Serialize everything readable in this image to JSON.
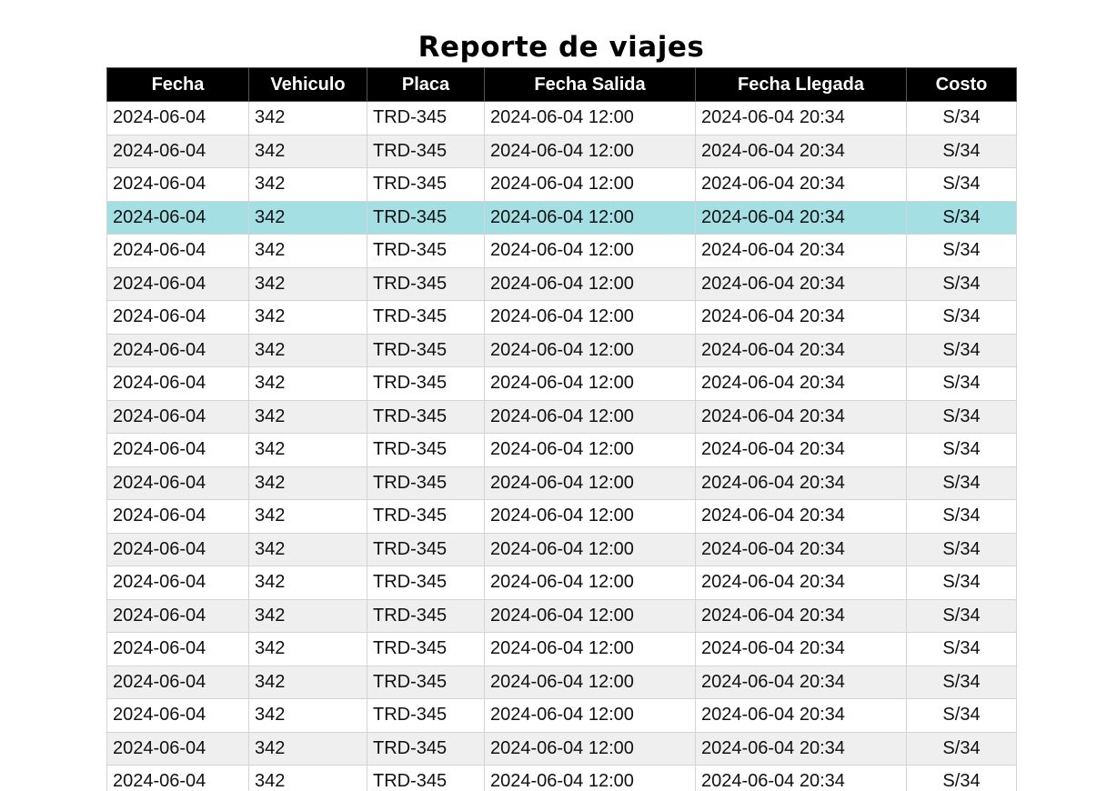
{
  "title": "Reporte de viajes",
  "colors": {
    "header_bg": "#000000",
    "header_text": "#ffffff",
    "row_alt": "#efefef",
    "row_selected": "#a3dfe3"
  },
  "table": {
    "columns": [
      "Fecha",
      "Vehiculo",
      "Placa",
      "Fecha Salida",
      "Fecha Llegada",
      "Costo"
    ],
    "selected_row": 3,
    "rows": [
      [
        "2024-06-04",
        "342",
        "TRD-345",
        "2024-06-04 12:00",
        "2024-06-04 20:34",
        "S/34"
      ],
      [
        "2024-06-04",
        "342",
        "TRD-345",
        "2024-06-04 12:00",
        "2024-06-04 20:34",
        "S/34"
      ],
      [
        "2024-06-04",
        "342",
        "TRD-345",
        "2024-06-04 12:00",
        "2024-06-04 20:34",
        "S/34"
      ],
      [
        "2024-06-04",
        "342",
        "TRD-345",
        "2024-06-04 12:00",
        "2024-06-04 20:34",
        "S/34"
      ],
      [
        "2024-06-04",
        "342",
        "TRD-345",
        "2024-06-04 12:00",
        "2024-06-04 20:34",
        "S/34"
      ],
      [
        "2024-06-04",
        "342",
        "TRD-345",
        "2024-06-04 12:00",
        "2024-06-04 20:34",
        "S/34"
      ],
      [
        "2024-06-04",
        "342",
        "TRD-345",
        "2024-06-04 12:00",
        "2024-06-04 20:34",
        "S/34"
      ],
      [
        "2024-06-04",
        "342",
        "TRD-345",
        "2024-06-04 12:00",
        "2024-06-04 20:34",
        "S/34"
      ],
      [
        "2024-06-04",
        "342",
        "TRD-345",
        "2024-06-04 12:00",
        "2024-06-04 20:34",
        "S/34"
      ],
      [
        "2024-06-04",
        "342",
        "TRD-345",
        "2024-06-04 12:00",
        "2024-06-04 20:34",
        "S/34"
      ],
      [
        "2024-06-04",
        "342",
        "TRD-345",
        "2024-06-04 12:00",
        "2024-06-04 20:34",
        "S/34"
      ],
      [
        "2024-06-04",
        "342",
        "TRD-345",
        "2024-06-04 12:00",
        "2024-06-04 20:34",
        "S/34"
      ],
      [
        "2024-06-04",
        "342",
        "TRD-345",
        "2024-06-04 12:00",
        "2024-06-04 20:34",
        "S/34"
      ],
      [
        "2024-06-04",
        "342",
        "TRD-345",
        "2024-06-04 12:00",
        "2024-06-04 20:34",
        "S/34"
      ],
      [
        "2024-06-04",
        "342",
        "TRD-345",
        "2024-06-04 12:00",
        "2024-06-04 20:34",
        "S/34"
      ],
      [
        "2024-06-04",
        "342",
        "TRD-345",
        "2024-06-04 12:00",
        "2024-06-04 20:34",
        "S/34"
      ],
      [
        "2024-06-04",
        "342",
        "TRD-345",
        "2024-06-04 12:00",
        "2024-06-04 20:34",
        "S/34"
      ],
      [
        "2024-06-04",
        "342",
        "TRD-345",
        "2024-06-04 12:00",
        "2024-06-04 20:34",
        "S/34"
      ],
      [
        "2024-06-04",
        "342",
        "TRD-345",
        "2024-06-04 12:00",
        "2024-06-04 20:34",
        "S/34"
      ],
      [
        "2024-06-04",
        "342",
        "TRD-345",
        "2024-06-04 12:00",
        "2024-06-04 20:34",
        "S/34"
      ],
      [
        "2024-06-04",
        "342",
        "TRD-345",
        "2024-06-04 12:00",
        "2024-06-04 20:34",
        "S/34"
      ]
    ]
  }
}
